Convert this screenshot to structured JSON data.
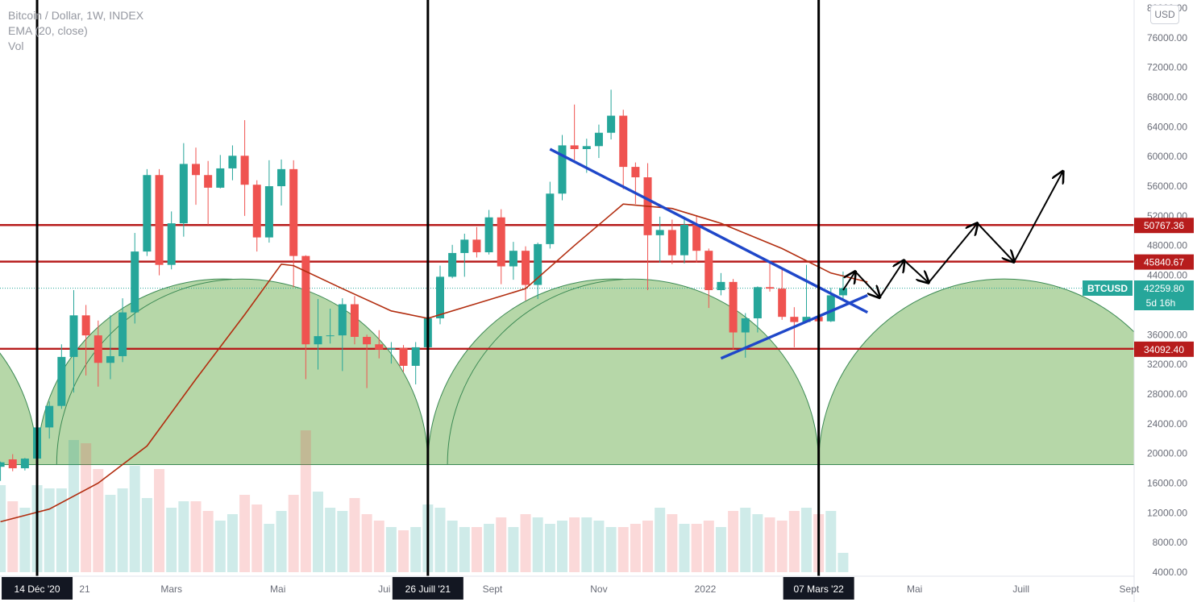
{
  "legend": {
    "symbol_line": "Bitcoin / Dollar, 1W, INDEX",
    "ema_line": "EMA (20, close)",
    "vol_line": "Vol"
  },
  "currency_button": "USD",
  "price_badge": {
    "symbol": "BTCUSD",
    "price": "42259.80",
    "countdown": "5d 16h",
    "color": "#26a69a"
  },
  "chart_data": {
    "type": "candlestick",
    "symbol": "Bitcoin / Dollar",
    "interval": "1W",
    "exchange": "INDEX",
    "y_axis": {
      "ticks": [
        "4000.00",
        "8000.00",
        "12000.00",
        "16000.00",
        "20000.00",
        "24000.00",
        "28000.00",
        "32000.00",
        "36000.00",
        "40000.00",
        "44000.00",
        "48000.00",
        "52000.00",
        "56000.00",
        "60000.00",
        "64000.00",
        "68000.00",
        "72000.00",
        "76000.00",
        "80000.00"
      ],
      "range": [
        4000,
        80000
      ],
      "scale": "linear"
    },
    "x_axis": {
      "ticks": [
        "Janv. 2021",
        "Mars",
        "Mai",
        "Juil.",
        "Sept",
        "Nov",
        "2022",
        "Mars",
        "Mai",
        "Juill",
        "Sept"
      ],
      "ticks_hidden_by_markers": [
        "Janv. 2021",
        "Juil.",
        "Mars"
      ],
      "visible_tick_labels": [
        "21",
        "Mars",
        "Mai",
        "Jui",
        "Sept",
        "Nov",
        "2022",
        "Mai",
        "Juill",
        "Sept"
      ],
      "range": [
        "2020-11-23",
        "2022-09-12"
      ]
    },
    "date_markers": [
      {
        "label": "14 Déc '20",
        "date": "2020-12-14"
      },
      {
        "label": "26 Juill '21",
        "date": "2021-07-26"
      },
      {
        "label": "07 Mars '22",
        "date": "2022-03-07"
      }
    ],
    "horizontal_levels": [
      {
        "price": 50767.36,
        "label": "50767.36"
      },
      {
        "price": 45840.67,
        "label": "45840.67"
      },
      {
        "price": 34092.4,
        "label": "34092.40"
      }
    ],
    "current_price_line": 42259.8,
    "ohlc": [
      [
        "2020-11-23",
        18200,
        18900,
        16300,
        18800
      ],
      [
        "2020-11-30",
        19200,
        19900,
        17600,
        18000
      ],
      [
        "2020-12-07",
        18000,
        19400,
        17700,
        19300
      ],
      [
        "2020-12-14",
        19300,
        24000,
        19200,
        23500
      ],
      [
        "2020-12-21",
        23500,
        27000,
        22000,
        26400
      ],
      [
        "2020-12-28",
        26400,
        34700,
        26000,
        33000
      ],
      [
        "2021-01-04",
        33000,
        42000,
        28200,
        38600
      ],
      [
        "2021-01-11",
        38600,
        40000,
        30500,
        35900
      ],
      [
        "2021-01-18",
        35900,
        37900,
        29000,
        32200
      ],
      [
        "2021-01-25",
        32200,
        38600,
        30000,
        33100
      ],
      [
        "2021-02-01",
        33100,
        40900,
        32300,
        39000
      ],
      [
        "2021-02-08",
        39000,
        49700,
        37500,
        47200
      ],
      [
        "2021-02-15",
        47200,
        58300,
        46600,
        57500
      ],
      [
        "2021-02-22",
        57500,
        58300,
        44000,
        45400
      ],
      [
        "2021-03-01",
        45400,
        52600,
        44800,
        51000
      ],
      [
        "2021-03-08",
        51000,
        61800,
        49200,
        59000
      ],
      [
        "2021-03-15",
        59000,
        61200,
        53500,
        57500
      ],
      [
        "2021-03-22",
        57500,
        59400,
        50800,
        55800
      ],
      [
        "2021-03-29",
        55800,
        60200,
        55700,
        58400
      ],
      [
        "2021-04-05",
        58400,
        61500,
        56800,
        60100
      ],
      [
        "2021-04-12",
        60100,
        64900,
        52000,
        56200
      ],
      [
        "2021-04-19",
        56200,
        56800,
        47200,
        49100
      ],
      [
        "2021-04-26",
        49100,
        59500,
        48400,
        56000
      ],
      [
        "2021-05-03",
        56000,
        59600,
        53400,
        58300
      ],
      [
        "2021-05-10",
        58300,
        59500,
        42400,
        46600
      ],
      [
        "2021-05-17",
        46600,
        46700,
        30000,
        34700
      ],
      [
        "2021-05-24",
        34700,
        40800,
        31300,
        35800
      ],
      [
        "2021-05-31",
        35800,
        39500,
        34800,
        35900
      ],
      [
        "2021-06-07",
        35900,
        40900,
        31100,
        40100
      ],
      [
        "2021-06-14",
        40100,
        41200,
        34700,
        35700
      ],
      [
        "2021-06-21",
        35700,
        36000,
        28800,
        34700
      ],
      [
        "2021-06-28",
        34700,
        36600,
        32800,
        34000
      ],
      [
        "2021-07-05",
        34000,
        35000,
        32100,
        34200
      ],
      [
        "2021-07-12",
        34200,
        34600,
        31000,
        31800
      ],
      [
        "2021-07-19",
        31800,
        35000,
        29300,
        34300
      ],
      [
        "2021-07-26",
        34300,
        42300,
        34000,
        38200
      ],
      [
        "2021-08-02",
        38200,
        45300,
        37400,
        43800
      ],
      [
        "2021-08-09",
        43800,
        48100,
        43600,
        47000
      ],
      [
        "2021-08-16",
        47000,
        49600,
        43800,
        48800
      ],
      [
        "2021-08-23",
        48800,
        50500,
        46400,
        47100
      ],
      [
        "2021-08-30",
        47100,
        52800,
        46800,
        51800
      ],
      [
        "2021-09-06",
        51800,
        52900,
        42800,
        45200
      ],
      [
        "2021-09-13",
        45200,
        48500,
        43400,
        47300
      ],
      [
        "2021-09-20",
        47300,
        47900,
        40600,
        42700
      ],
      [
        "2021-09-27",
        42700,
        48400,
        40800,
        48200
      ],
      [
        "2021-10-04",
        48200,
        56600,
        47600,
        55000
      ],
      [
        "2021-10-11",
        55000,
        62900,
        54100,
        61500
      ],
      [
        "2021-10-18",
        61500,
        67000,
        59500,
        61000
      ],
      [
        "2021-10-25",
        61000,
        62400,
        57800,
        61400
      ],
      [
        "2021-11-01",
        61400,
        64300,
        59800,
        63200
      ],
      [
        "2021-11-08",
        63200,
        69000,
        62300,
        65500
      ],
      [
        "2021-11-15",
        65500,
        66300,
        55600,
        58600
      ],
      [
        "2021-11-22",
        58600,
        59200,
        53600,
        57200
      ],
      [
        "2021-11-29",
        57200,
        59100,
        42000,
        49400
      ],
      [
        "2021-12-06",
        49400,
        51900,
        45700,
        50100
      ],
      [
        "2021-12-13",
        50100,
        51500,
        45500,
        46700
      ],
      [
        "2021-12-20",
        46700,
        51900,
        45600,
        50800
      ],
      [
        "2021-12-27",
        50800,
        52100,
        45700,
        47300
      ],
      [
        "2022-01-03",
        47300,
        47600,
        39600,
        42000
      ],
      [
        "2022-01-10",
        42000,
        44300,
        41300,
        43100
      ],
      [
        "2022-01-17",
        43100,
        43500,
        34000,
        36300
      ],
      [
        "2022-01-24",
        36300,
        38900,
        32900,
        38200
      ],
      [
        "2022-01-31",
        38200,
        42500,
        36300,
        42400
      ],
      [
        "2022-02-07",
        42400,
        45800,
        41800,
        42200
      ],
      [
        "2022-02-14",
        42200,
        44800,
        38000,
        38400
      ],
      [
        "2022-02-21",
        38400,
        39700,
        34300,
        37700
      ],
      [
        "2022-02-28",
        37700,
        45400,
        37600,
        38400
      ],
      [
        "2022-03-07",
        38400,
        42600,
        37100,
        37800
      ],
      [
        "2022-03-14",
        37800,
        42300,
        37700,
        41300
      ],
      [
        "2022-03-21",
        41300,
        44500,
        40800,
        42260
      ]
    ],
    "ema": {
      "name": "EMA (20, close)",
      "period": 20,
      "color": "#b22d0f",
      "points": [
        [
          "2020-11-23",
          10800
        ],
        [
          "2020-12-21",
          12500
        ],
        [
          "2021-01-18",
          16000
        ],
        [
          "2021-02-15",
          21000
        ],
        [
          "2021-03-15",
          30000
        ],
        [
          "2021-04-12",
          38700
        ],
        [
          "2021-05-03",
          45500
        ],
        [
          "2021-05-10",
          45300
        ],
        [
          "2021-06-07",
          42200
        ],
        [
          "2021-07-05",
          39200
        ],
        [
          "2021-07-26",
          38200
        ],
        [
          "2021-08-23",
          40200
        ],
        [
          "2021-09-20",
          42200
        ],
        [
          "2021-10-18",
          48000
        ],
        [
          "2021-11-15",
          53600
        ],
        [
          "2021-12-13",
          53000
        ],
        [
          "2022-01-10",
          51000
        ],
        [
          "2022-02-14",
          47600
        ],
        [
          "2022-03-14",
          44300
        ],
        [
          "2022-04-04",
          43100
        ]
      ]
    },
    "volume_bars": 70,
    "annotations": {
      "half_circles": 3,
      "trend_lines": 2,
      "projection_path": true
    }
  }
}
